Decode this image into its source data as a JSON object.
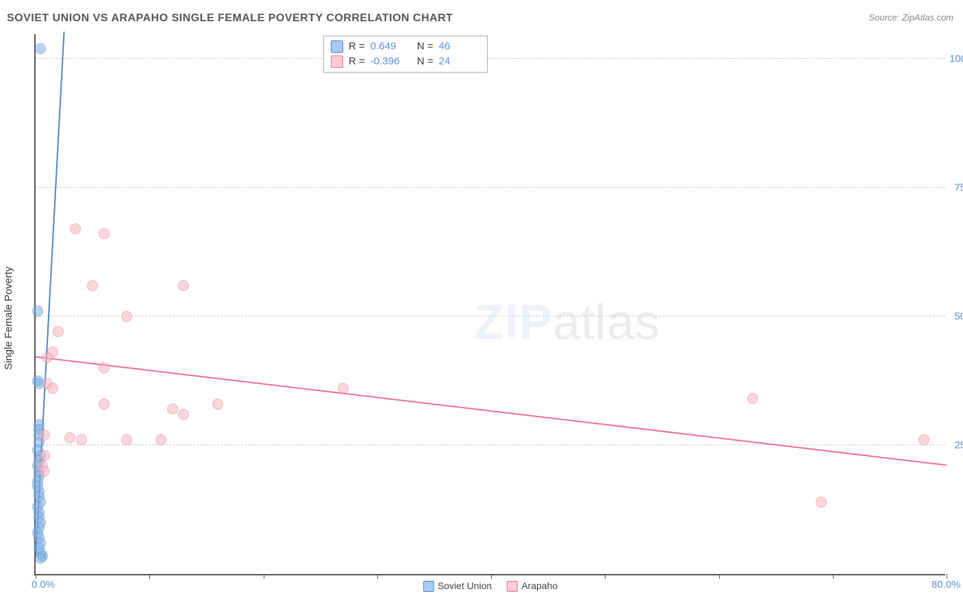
{
  "title": "SOVIET UNION VS ARAPAHO SINGLE FEMALE POVERTY CORRELATION CHART",
  "source": "Source: ZipAtlas.com",
  "y_axis_label": "Single Female Poverty",
  "watermark_zip": "ZIP",
  "watermark_atlas": "atlas",
  "chart": {
    "type": "scatter",
    "xlim": [
      0,
      80
    ],
    "ylim": [
      0,
      105
    ],
    "x_ticks": [
      0,
      10,
      20,
      30,
      40,
      50,
      60,
      70,
      80
    ],
    "x_tick_labels": {
      "0": "0.0%",
      "80": "80.0%"
    },
    "y_gridlines": [
      25,
      50,
      75,
      100
    ],
    "y_tick_labels": {
      "25": "25.0%",
      "50": "50.0%",
      "75": "75.0%",
      "100": "100.0%"
    },
    "background_color": "#ffffff",
    "grid_color": "#cccccc",
    "axis_color": "#555555",
    "tick_label_color": "#5b8fd6",
    "marker_radius": 8,
    "marker_opacity": 0.55,
    "series": [
      {
        "name": "Soviet Union",
        "color": "#7fb0e6",
        "border": "#4a86c7",
        "r": 0.649,
        "n": 46,
        "trend": {
          "x1": 0,
          "y1": 3,
          "x2": 2.5,
          "y2": 105,
          "color": "#4a86c7"
        },
        "points": [
          [
            0.4,
            102
          ],
          [
            0.2,
            51
          ],
          [
            0.2,
            37.5
          ],
          [
            0.3,
            37
          ],
          [
            0.3,
            29
          ],
          [
            0.3,
            28
          ],
          [
            0.3,
            27
          ],
          [
            0.3,
            25.5
          ],
          [
            0.2,
            24
          ],
          [
            0.4,
            23
          ],
          [
            0.3,
            22
          ],
          [
            0.2,
            21
          ],
          [
            0.3,
            20
          ],
          [
            0.3,
            19
          ],
          [
            0.2,
            18
          ],
          [
            0.2,
            17
          ],
          [
            0.3,
            16
          ],
          [
            0.3,
            15
          ],
          [
            0.4,
            14
          ],
          [
            0.2,
            13
          ],
          [
            0.3,
            12
          ],
          [
            0.3,
            11
          ],
          [
            0.4,
            10
          ],
          [
            0.3,
            9
          ],
          [
            0.2,
            8
          ],
          [
            0.3,
            7
          ],
          [
            0.4,
            6
          ],
          [
            0.3,
            5
          ],
          [
            0.5,
            4
          ],
          [
            0.6,
            3.5
          ],
          [
            0.4,
            3
          ]
        ]
      },
      {
        "name": "Arapaho",
        "color": "#f5b6c4",
        "border": "#ec6f92",
        "r": -0.396,
        "n": 24,
        "trend": {
          "x1": 0,
          "y1": 42,
          "x2": 80,
          "y2": 21,
          "color": "#ec6f92"
        },
        "points": [
          [
            3.5,
            67
          ],
          [
            6,
            66
          ],
          [
            5,
            56
          ],
          [
            13,
            56
          ],
          [
            8,
            50
          ],
          [
            2,
            47
          ],
          [
            1.5,
            43
          ],
          [
            1,
            42
          ],
          [
            6,
            40
          ],
          [
            1,
            37
          ],
          [
            1.5,
            36
          ],
          [
            27,
            36
          ],
          [
            63,
            34
          ],
          [
            6,
            33
          ],
          [
            16,
            33
          ],
          [
            12,
            32
          ],
          [
            13,
            31
          ],
          [
            0.8,
            27
          ],
          [
            4,
            26
          ],
          [
            3,
            26.5
          ],
          [
            8,
            26
          ],
          [
            11,
            26
          ],
          [
            78,
            26
          ],
          [
            0.8,
            23
          ],
          [
            0.6,
            21
          ],
          [
            0.7,
            20
          ],
          [
            69,
            14
          ]
        ]
      }
    ]
  },
  "stat_box": {
    "rows": [
      {
        "swatch_fill": "#a8cbef",
        "swatch_border": "#4a86c7",
        "r_label": "R =",
        "r_val": "0.649",
        "n_label": "N =",
        "n_val": "46"
      },
      {
        "swatch_fill": "#f8cdd7",
        "swatch_border": "#ec6f92",
        "r_label": "R =",
        "r_val": "-0.396",
        "n_label": "N =",
        "n_val": "24"
      }
    ]
  },
  "x_legend": [
    {
      "swatch_fill": "#a8cbef",
      "swatch_border": "#4a86c7",
      "label": "Soviet Union"
    },
    {
      "swatch_fill": "#f8cdd7",
      "swatch_border": "#ec6f92",
      "label": "Arapaho"
    }
  ]
}
